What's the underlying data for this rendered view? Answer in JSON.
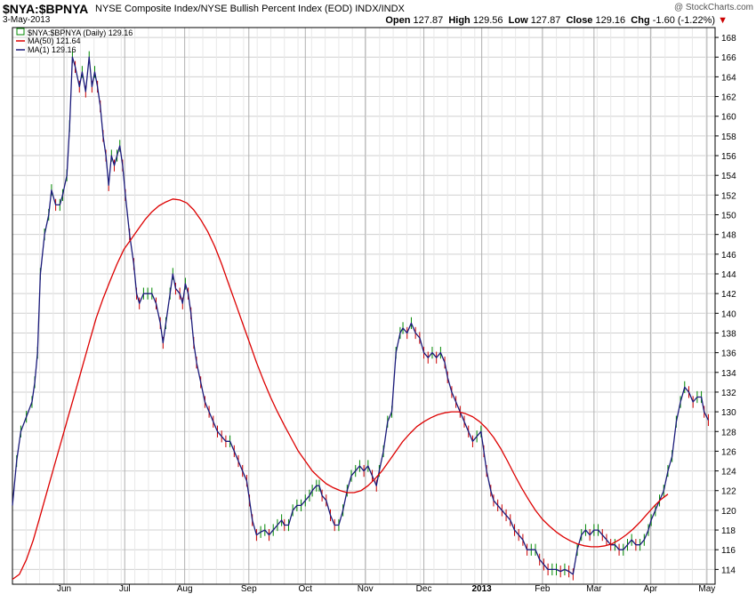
{
  "header": {
    "symbol": "$NYA:$BPNYA",
    "description": "NYSE Composite Index/NYSE Bullish Percent Index (EOD)",
    "exchange": "INDX/INDX",
    "date": "3-May-2013",
    "brand": "@ StockCharts.com",
    "open_label": "Open",
    "open": "127.87",
    "high_label": "High",
    "high": "129.56",
    "low_label": "Low",
    "low": "127.87",
    "close_label": "Close",
    "close": "129.16",
    "chg_label": "Chg",
    "chg": "-1.60 (-1.22%)",
    "chg_arrow": "▼"
  },
  "legend": {
    "price": "$NYA:$BPNYA (Daily) 129.16",
    "ma50": "MA(50) 121.64",
    "ma1": "MA(1) 129.16"
  },
  "colors": {
    "price": "#1a1a7a",
    "ma50": "#dd0000",
    "up_bar": "#008800",
    "down_bar": "#cc0000",
    "grid": "#d0d0d0",
    "axis": "#000000"
  },
  "chart_data": {
    "type": "line",
    "title": "$NYA:$BPNYA",
    "ylim": [
      112.5,
      169
    ],
    "yticks": [
      114,
      116,
      118,
      120,
      122,
      124,
      126,
      128,
      130,
      132,
      134,
      136,
      138,
      140,
      142,
      144,
      146,
      148,
      150,
      152,
      154,
      156,
      158,
      160,
      162,
      164,
      166,
      168
    ],
    "xrange": [
      0,
      100
    ],
    "months": [
      {
        "label": "Jun",
        "x": 7.4
      },
      {
        "label": "Jul",
        "x": 16.1
      },
      {
        "label": "Aug",
        "x": 24.7
      },
      {
        "label": "Sep",
        "x": 33.9
      },
      {
        "label": "Oct",
        "x": 42.0
      },
      {
        "label": "Nov",
        "x": 50.6
      },
      {
        "label": "Dec",
        "x": 59.0
      },
      {
        "label": "2013",
        "x": 67.3
      },
      {
        "label": "Feb",
        "x": 76.0
      },
      {
        "label": "Mar",
        "x": 83.4
      },
      {
        "label": "Apr",
        "x": 91.5
      },
      {
        "label": "May",
        "x": 99.6
      }
    ],
    "series": [
      {
        "name": "MA(1)",
        "points": [
          [
            0,
            120.5
          ],
          [
            0.6,
            125
          ],
          [
            1.2,
            128
          ],
          [
            2.0,
            129.5
          ],
          [
            2.8,
            131
          ],
          [
            3.2,
            133
          ],
          [
            3.6,
            136
          ],
          [
            4.0,
            144
          ],
          [
            4.6,
            148
          ],
          [
            5.2,
            150
          ],
          [
            5.6,
            152.5
          ],
          [
            6.2,
            151
          ],
          [
            6.8,
            151
          ],
          [
            7.2,
            152
          ],
          [
            7.8,
            154
          ],
          [
            8.2,
            159
          ],
          [
            8.6,
            166
          ],
          [
            9.0,
            165
          ],
          [
            9.6,
            163
          ],
          [
            10.0,
            164.5
          ],
          [
            10.5,
            162.5
          ],
          [
            11.0,
            166
          ],
          [
            11.4,
            163
          ],
          [
            11.8,
            164.5
          ],
          [
            12.2,
            163
          ],
          [
            12.6,
            161
          ],
          [
            13.0,
            158
          ],
          [
            13.4,
            156
          ],
          [
            13.8,
            153
          ],
          [
            14.2,
            156
          ],
          [
            14.6,
            155
          ],
          [
            15.0,
            156
          ],
          [
            15.4,
            157
          ],
          [
            15.8,
            155
          ],
          [
            16.2,
            152
          ],
          [
            16.8,
            148
          ],
          [
            17.4,
            145
          ],
          [
            17.8,
            142
          ],
          [
            18.2,
            141
          ],
          [
            18.8,
            142
          ],
          [
            19.4,
            142
          ],
          [
            20.0,
            142
          ],
          [
            20.6,
            141
          ],
          [
            21.2,
            139
          ],
          [
            21.6,
            137
          ],
          [
            22.0,
            139
          ],
          [
            22.6,
            142
          ],
          [
            23.0,
            144
          ],
          [
            23.4,
            142.5
          ],
          [
            24.0,
            142
          ],
          [
            24.4,
            141
          ],
          [
            24.8,
            143
          ],
          [
            25.2,
            142
          ],
          [
            25.6,
            140
          ],
          [
            26.0,
            137
          ],
          [
            26.4,
            135
          ],
          [
            27.0,
            133
          ],
          [
            27.6,
            131
          ],
          [
            28.2,
            130
          ],
          [
            28.8,
            129
          ],
          [
            29.4,
            128
          ],
          [
            30.0,
            127.5
          ],
          [
            30.6,
            127
          ],
          [
            31.2,
            127
          ],
          [
            31.8,
            126
          ],
          [
            32.4,
            125
          ],
          [
            33.0,
            124
          ],
          [
            33.6,
            123
          ],
          [
            34.0,
            121
          ],
          [
            34.4,
            119
          ],
          [
            35.0,
            117.5
          ],
          [
            35.6,
            117.8
          ],
          [
            36.2,
            118
          ],
          [
            36.8,
            117.5
          ],
          [
            37.4,
            118
          ],
          [
            38.0,
            118.5
          ],
          [
            38.6,
            119
          ],
          [
            39.0,
            118.5
          ],
          [
            39.6,
            118.5
          ],
          [
            40.2,
            120
          ],
          [
            40.8,
            120.5
          ],
          [
            41.4,
            120.5
          ],
          [
            42.0,
            121
          ],
          [
            42.6,
            121.5
          ],
          [
            43.0,
            122
          ],
          [
            43.6,
            122.5
          ],
          [
            44.0,
            122.5
          ],
          [
            44.4,
            121.5
          ],
          [
            45.0,
            121
          ],
          [
            45.6,
            119.5
          ],
          [
            46.2,
            118.5
          ],
          [
            46.8,
            118.5
          ],
          [
            47.4,
            120
          ],
          [
            48.0,
            122
          ],
          [
            48.6,
            123.5
          ],
          [
            49.2,
            124
          ],
          [
            49.8,
            124.5
          ],
          [
            50.4,
            124
          ],
          [
            51.0,
            124.5
          ],
          [
            51.6,
            123.5
          ],
          [
            52.2,
            122.5
          ],
          [
            52.6,
            124
          ],
          [
            53.2,
            126
          ],
          [
            53.8,
            129
          ],
          [
            54.4,
            130
          ],
          [
            55.0,
            136
          ],
          [
            55.6,
            138
          ],
          [
            56.0,
            138.5
          ],
          [
            56.6,
            138
          ],
          [
            57.2,
            139
          ],
          [
            57.8,
            138
          ],
          [
            58.4,
            137.5
          ],
          [
            59.0,
            136
          ],
          [
            59.6,
            135.5
          ],
          [
            60.2,
            136
          ],
          [
            60.8,
            135.5
          ],
          [
            61.4,
            136
          ],
          [
            62.0,
            135
          ],
          [
            62.4,
            133.5
          ],
          [
            63.0,
            132
          ],
          [
            63.6,
            131
          ],
          [
            64.2,
            130
          ],
          [
            64.8,
            129
          ],
          [
            65.4,
            128
          ],
          [
            66.0,
            127
          ],
          [
            66.6,
            127.5
          ],
          [
            67.2,
            128
          ],
          [
            67.6,
            126
          ],
          [
            68.0,
            124
          ],
          [
            68.6,
            122
          ],
          [
            69.0,
            121
          ],
          [
            69.6,
            120.5
          ],
          [
            70.2,
            120
          ],
          [
            70.8,
            119.5
          ],
          [
            71.4,
            119
          ],
          [
            72.0,
            118
          ],
          [
            72.6,
            117.5
          ],
          [
            73.2,
            117
          ],
          [
            73.8,
            116
          ],
          [
            74.4,
            116
          ],
          [
            75.0,
            116
          ],
          [
            75.6,
            115
          ],
          [
            76.2,
            114.5
          ],
          [
            76.8,
            114
          ],
          [
            77.4,
            114
          ],
          [
            78.0,
            114
          ],
          [
            78.6,
            113.8
          ],
          [
            79.2,
            114
          ],
          [
            79.8,
            113.8
          ],
          [
            80.4,
            113.5
          ],
          [
            81.0,
            116
          ],
          [
            81.6,
            117.5
          ],
          [
            82.2,
            118
          ],
          [
            82.8,
            117.5
          ],
          [
            83.4,
            118
          ],
          [
            84.0,
            118
          ],
          [
            84.6,
            117.5
          ],
          [
            85.2,
            117
          ],
          [
            85.8,
            116.5
          ],
          [
            86.4,
            116.5
          ],
          [
            87.0,
            116
          ],
          [
            87.6,
            116
          ],
          [
            88.2,
            116.5
          ],
          [
            88.8,
            117
          ],
          [
            89.4,
            116.5
          ],
          [
            90.0,
            116.5
          ],
          [
            90.6,
            117
          ],
          [
            91.2,
            118
          ],
          [
            91.6,
            119
          ],
          [
            92.2,
            120
          ],
          [
            92.8,
            121
          ],
          [
            93.4,
            122
          ],
          [
            94.0,
            124
          ],
          [
            94.6,
            125.5
          ],
          [
            95.2,
            129
          ],
          [
            95.8,
            131
          ],
          [
            96.4,
            132.5
          ],
          [
            97.0,
            132
          ],
          [
            97.6,
            131
          ],
          [
            98.2,
            131.5
          ],
          [
            98.8,
            131.5
          ],
          [
            99.2,
            130
          ],
          [
            99.8,
            129.16
          ]
        ]
      },
      {
        "name": "MA(50)",
        "points": [
          [
            0,
            113
          ],
          [
            1,
            113.5
          ],
          [
            2,
            115
          ],
          [
            3,
            117
          ],
          [
            4,
            119.5
          ],
          [
            5,
            122
          ],
          [
            6,
            124.5
          ],
          [
            7,
            127
          ],
          [
            8,
            129.5
          ],
          [
            9,
            132
          ],
          [
            10,
            134.5
          ],
          [
            11,
            137
          ],
          [
            12,
            139.5
          ],
          [
            13,
            141.5
          ],
          [
            14,
            143.3
          ],
          [
            15,
            145
          ],
          [
            16,
            146.5
          ],
          [
            17,
            147.5
          ],
          [
            18,
            148.5
          ],
          [
            19,
            149.5
          ],
          [
            20,
            150.3
          ],
          [
            21,
            150.9
          ],
          [
            22,
            151.3
          ],
          [
            23,
            151.6
          ],
          [
            24,
            151.5
          ],
          [
            25,
            151.2
          ],
          [
            26,
            150.5
          ],
          [
            27,
            149.5
          ],
          [
            28,
            148.3
          ],
          [
            29,
            146.8
          ],
          [
            30,
            145
          ],
          [
            31,
            143
          ],
          [
            32,
            141
          ],
          [
            33,
            139
          ],
          [
            34,
            137
          ],
          [
            35,
            135
          ],
          [
            36,
            133.2
          ],
          [
            37,
            131.5
          ],
          [
            38,
            130
          ],
          [
            39,
            128.6
          ],
          [
            40,
            127.3
          ],
          [
            41,
            126
          ],
          [
            42,
            125
          ],
          [
            43,
            124
          ],
          [
            44,
            123.3
          ],
          [
            45,
            122.7
          ],
          [
            46,
            122.3
          ],
          [
            47,
            122
          ],
          [
            48,
            121.8
          ],
          [
            49,
            121.8
          ],
          [
            50,
            122
          ],
          [
            51,
            122.5
          ],
          [
            52,
            123.2
          ],
          [
            53,
            124
          ],
          [
            54,
            125
          ],
          [
            55,
            126
          ],
          [
            56,
            127
          ],
          [
            57,
            127.8
          ],
          [
            58,
            128.5
          ],
          [
            59,
            129
          ],
          [
            60,
            129.4
          ],
          [
            61,
            129.7
          ],
          [
            62,
            129.9
          ],
          [
            63,
            130
          ],
          [
            64,
            130
          ],
          [
            65,
            129.8
          ],
          [
            66,
            129.5
          ],
          [
            67,
            129
          ],
          [
            68,
            128.3
          ],
          [
            69,
            127.4
          ],
          [
            70,
            126.3
          ],
          [
            71,
            125
          ],
          [
            72,
            123.6
          ],
          [
            73,
            122.3
          ],
          [
            74,
            121.1
          ],
          [
            75,
            120
          ],
          [
            76,
            119.1
          ],
          [
            77,
            118.4
          ],
          [
            78,
            117.8
          ],
          [
            79,
            117.3
          ],
          [
            80,
            116.9
          ],
          [
            81,
            116.6
          ],
          [
            82,
            116.4
          ],
          [
            83,
            116.3
          ],
          [
            84,
            116.3
          ],
          [
            85,
            116.4
          ],
          [
            86,
            116.6
          ],
          [
            87,
            117
          ],
          [
            88,
            117.5
          ],
          [
            89,
            118.1
          ],
          [
            90,
            118.8
          ],
          [
            91,
            119.6
          ],
          [
            92,
            120.4
          ],
          [
            93,
            121.1
          ],
          [
            94,
            121.64
          ]
        ]
      }
    ]
  }
}
